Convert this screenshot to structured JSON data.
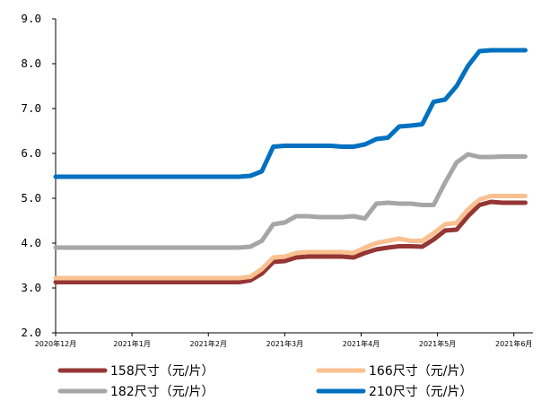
{
  "chart_data": {
    "type": "line",
    "title": "",
    "xlabel": "",
    "ylabel": "",
    "ylim": [
      2.0,
      9.0
    ],
    "yticks": [
      "2.0",
      "3.0",
      "4.0",
      "5.0",
      "6.0",
      "7.0",
      "8.0",
      "9.0"
    ],
    "x_tick_labels": [
      "2020年12月",
      "2021年1月",
      "2021年2月",
      "2021年3月",
      "2021年4月",
      "2021年5月",
      "2021年6月"
    ],
    "grid": false,
    "legend_position": "bottom",
    "x": [
      0,
      0.3,
      0.6,
      0.9,
      1.2,
      1.5,
      1.8,
      2.1,
      2.4,
      2.55,
      2.7,
      2.85,
      3.0,
      3.15,
      3.3,
      3.45,
      3.6,
      3.75,
      3.9,
      4.05,
      4.2,
      4.35,
      4.5,
      4.65,
      4.8,
      4.95,
      5.1,
      5.25,
      5.4,
      5.55,
      5.7,
      5.85,
      6.0,
      6.15
    ],
    "series": [
      {
        "name": "158尺寸（元/片）",
        "color": "#943634",
        "values": [
          3.13,
          3.13,
          3.13,
          3.13,
          3.13,
          3.13,
          3.13,
          3.13,
          3.13,
          3.17,
          3.32,
          3.58,
          3.6,
          3.68,
          3.7,
          3.7,
          3.7,
          3.7,
          3.68,
          3.78,
          3.86,
          3.9,
          3.93,
          3.93,
          3.92,
          4.08,
          4.28,
          4.3,
          4.6,
          4.85,
          4.92,
          4.9,
          4.9,
          4.9
        ]
      },
      {
        "name": "166尺寸（元/片）",
        "color": "#FAC090",
        "values": [
          3.22,
          3.22,
          3.22,
          3.22,
          3.22,
          3.22,
          3.22,
          3.22,
          3.22,
          3.25,
          3.42,
          3.68,
          3.7,
          3.78,
          3.8,
          3.8,
          3.8,
          3.8,
          3.78,
          3.9,
          4.0,
          4.05,
          4.1,
          4.05,
          4.05,
          4.22,
          4.42,
          4.45,
          4.75,
          4.97,
          5.05,
          5.05,
          5.05,
          5.05
        ]
      },
      {
        "name": "182尺寸（元/片）",
        "color": "#A6A6A6",
        "values": [
          3.9,
          3.9,
          3.9,
          3.9,
          3.9,
          3.9,
          3.9,
          3.9,
          3.9,
          3.92,
          4.05,
          4.42,
          4.46,
          4.6,
          4.6,
          4.58,
          4.58,
          4.58,
          4.6,
          4.55,
          4.88,
          4.9,
          4.88,
          4.88,
          4.85,
          4.85,
          5.35,
          5.8,
          5.98,
          5.92,
          5.92,
          5.93,
          5.93,
          5.93
        ]
      },
      {
        "name": "210尺寸（元/片）",
        "color": "#0070C0",
        "values": [
          5.48,
          5.48,
          5.48,
          5.48,
          5.48,
          5.48,
          5.48,
          5.48,
          5.48,
          5.5,
          5.6,
          6.15,
          6.17,
          6.17,
          6.17,
          6.17,
          6.17,
          6.15,
          6.15,
          6.2,
          6.32,
          6.35,
          6.6,
          6.62,
          6.65,
          7.15,
          7.2,
          7.5,
          7.95,
          8.28,
          8.3,
          8.3,
          8.3,
          8.3
        ]
      }
    ]
  }
}
